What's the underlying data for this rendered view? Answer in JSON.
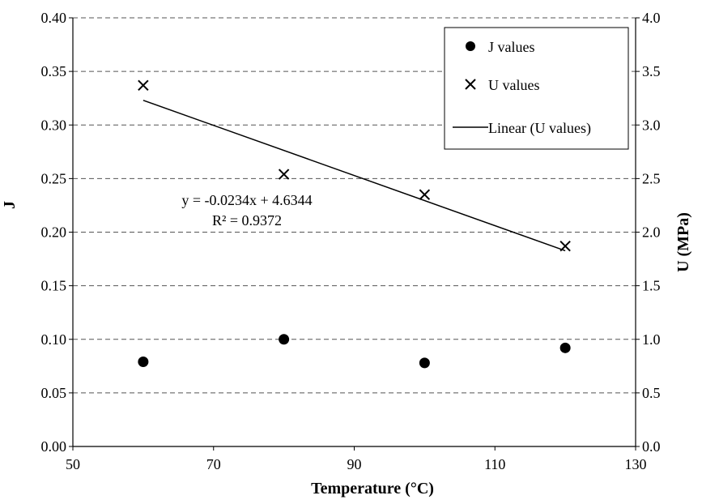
{
  "chart_data": {
    "type": "scatter",
    "xlabel": "Temperature (°C)",
    "ylabel": "J",
    "y2label": "U (MPa)",
    "xlim": [
      50,
      130
    ],
    "ylim": [
      0,
      0.4
    ],
    "y2lim": [
      0,
      4.0
    ],
    "x_ticks": [
      "50",
      "70",
      "90",
      "110",
      "130"
    ],
    "y_ticks": [
      "0.00",
      "0.05",
      "0.10",
      "0.15",
      "0.20",
      "0.25",
      "0.30",
      "0.35",
      "0.40"
    ],
    "y2_ticks": [
      "0.0",
      "0.5",
      "1.0",
      "1.5",
      "2.0",
      "2.5",
      "3.0",
      "3.5",
      "4.0"
    ],
    "grid": "horizontal dashed",
    "legend_position": "top-right",
    "series": [
      {
        "name": "J values",
        "marker": "circle",
        "axis": "left",
        "x": [
          60,
          80,
          100,
          120
        ],
        "y": [
          0.079,
          0.1,
          0.078,
          0.092
        ]
      },
      {
        "name": "U values",
        "marker": "x",
        "axis": "right",
        "x": [
          60,
          80,
          100,
          120
        ],
        "y": [
          3.37,
          2.54,
          2.35,
          1.87
        ]
      },
      {
        "name": "Linear (U values)",
        "type": "line",
        "axis": "right",
        "slope": -0.0234,
        "intercept": 4.6344,
        "x_range": [
          60,
          120
        ]
      }
    ],
    "annotations": [
      "y = -0.0234x + 4.6344",
      "R² = 0.9372"
    ],
    "colors": {
      "marker": "#000000",
      "grid": "#555555",
      "line": "#000000"
    }
  }
}
